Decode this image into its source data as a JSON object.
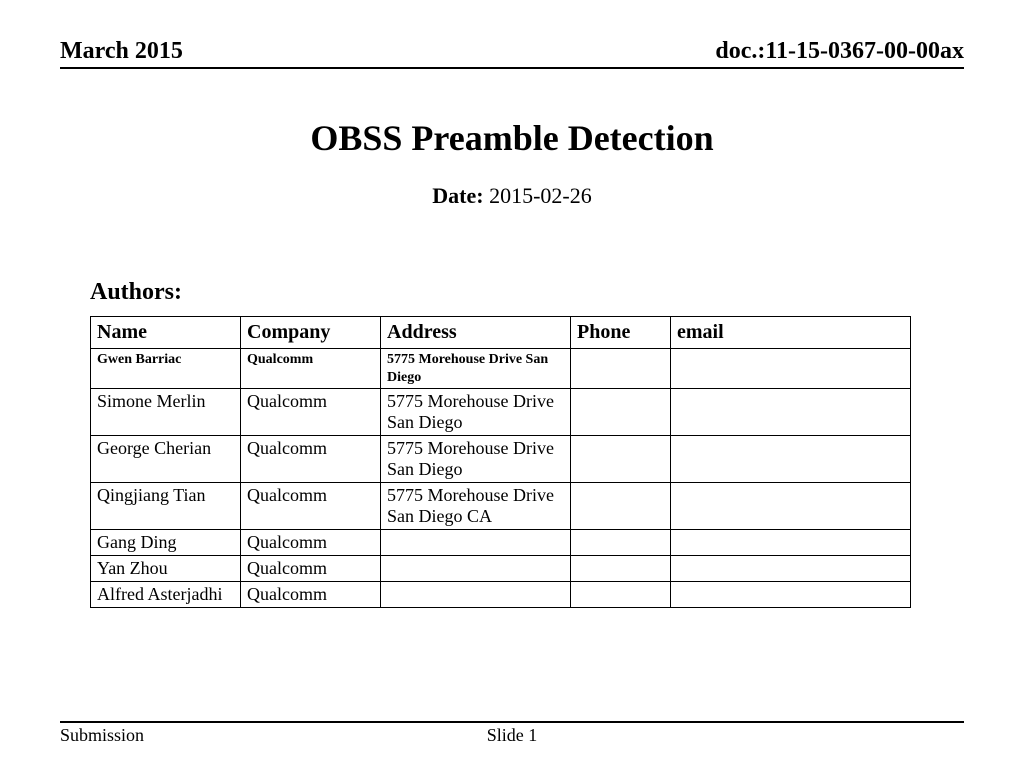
{
  "header": {
    "left": "March 2015",
    "right": "doc.:11-15-0367-00-00ax"
  },
  "title": "OBSS Preamble Detection",
  "date": {
    "label": "Date:",
    "value": "2015-02-26"
  },
  "authors": {
    "label": "Authors:",
    "columns": [
      "Name",
      "Company",
      "Address",
      "Phone",
      "email"
    ],
    "rows": [
      {
        "name": "Gwen Barriac",
        "company": "Qualcomm",
        "address": "5775 Morehouse Drive San Diego",
        "phone": "",
        "email": "",
        "small": true
      },
      {
        "name": "Simone Merlin",
        "company": "Qualcomm",
        "address": "5775 Morehouse Drive San Diego",
        "phone": "",
        "email": "",
        "small": false
      },
      {
        "name": "George Cherian",
        "company": "Qualcomm",
        "address": "5775 Morehouse Drive San Diego",
        "phone": "",
        "email": "",
        "small": false
      },
      {
        "name": "Qingjiang Tian",
        "company": "Qualcomm",
        "address": "5775 Morehouse Drive San Diego CA",
        "phone": "",
        "email": "",
        "small": false
      },
      {
        "name": "Gang Ding",
        "company": "Qualcomm",
        "address": "",
        "phone": "",
        "email": "",
        "small": false
      },
      {
        "name": "Yan Zhou",
        "company": "Qualcomm",
        "address": "",
        "phone": "",
        "email": "",
        "small": false
      },
      {
        "name": "Alfred Asterjadhi",
        "company": "Qualcomm",
        "address": "",
        "phone": "",
        "email": "",
        "small": false
      }
    ]
  },
  "footer": {
    "left": "Submission",
    "center": "Slide 1",
    "right": ""
  },
  "style": {
    "page_background": "#ffffff",
    "text_color": "#000000",
    "rule_color": "#000000",
    "font_family": "Times New Roman",
    "title_fontsize": 36,
    "header_fontsize": 24,
    "date_fontsize": 22,
    "authors_label_fontsize": 24,
    "table_header_fontsize": 20,
    "table_body_fontsize": 18,
    "small_row_fontsize": 14,
    "footer_fontsize": 18
  }
}
